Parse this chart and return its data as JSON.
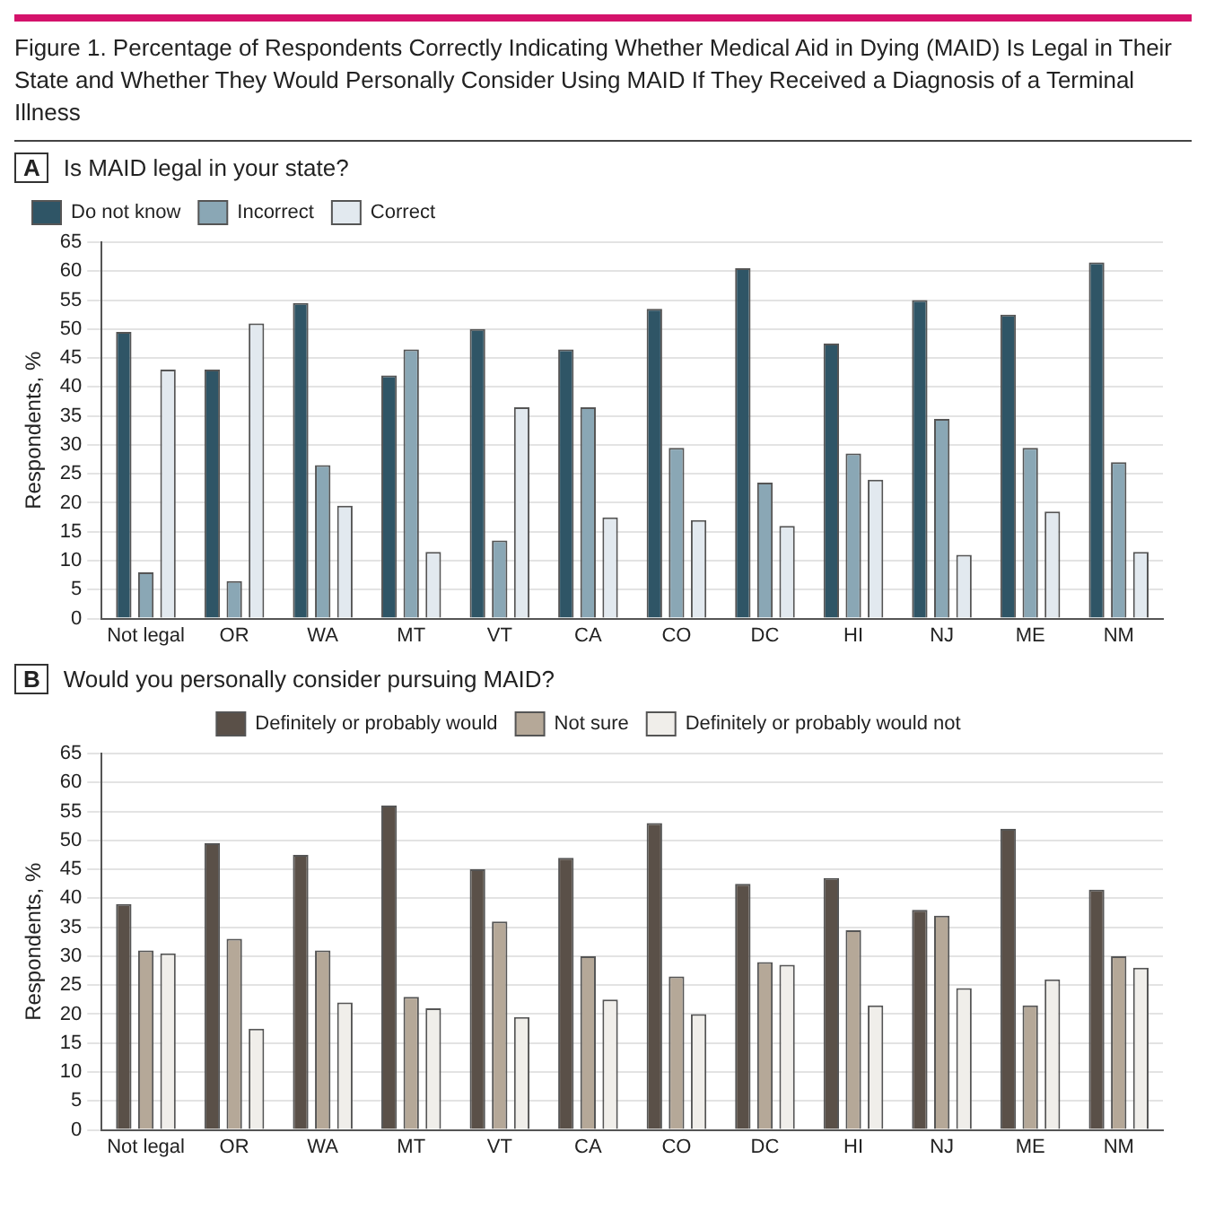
{
  "chart_data": [
    {
      "type": "bar",
      "title": "Figure 1. Percentage of Respondents Correctly Indicating Whether Medical Aid in Dying (MAID) Is Legal in Their State and Whether They Would Personally Consider Using MAID If They Received a Diagnosis of a Terminal Illness",
      "subtitle": "Is MAID legal in your state?",
      "annotations": [
        "A"
      ],
      "ylabel": "Respondents, %",
      "categories": [
        "Not legal",
        "OR",
        "WA",
        "MT",
        "VT",
        "CA",
        "CO",
        "DC",
        "HI",
        "NJ",
        "ME",
        "NM"
      ],
      "series": [
        {
          "name": "Do not know",
          "color": "#2f5566",
          "values": [
            49.5,
            43,
            54.5,
            42,
            50,
            46.5,
            53.5,
            60.5,
            47.5,
            55,
            52.5,
            61.5
          ]
        },
        {
          "name": "Incorrect",
          "color": "#8aa7b5",
          "values": [
            8,
            6.5,
            26.5,
            46.5,
            13.5,
            36.5,
            29.5,
            23.5,
            28.5,
            34.5,
            29.5,
            27
          ]
        },
        {
          "name": "Correct",
          "color": "#e2e9ef",
          "values": [
            43,
            51,
            19.5,
            11.5,
            36.5,
            17.5,
            17,
            16,
            24,
            11,
            18.5,
            11.5
          ]
        }
      ],
      "ylim": [
        0,
        65
      ],
      "yticks": [
        0,
        5,
        10,
        15,
        20,
        25,
        30,
        35,
        40,
        45,
        50,
        55,
        60,
        65
      ],
      "grid": "y",
      "legend": "top left"
    },
    {
      "type": "bar",
      "title": "Would you personally consider pursuing MAID?",
      "annotations": [
        "B"
      ],
      "ylabel": "Respondents, %",
      "categories": [
        "Not legal",
        "OR",
        "WA",
        "MT",
        "VT",
        "CA",
        "CO",
        "DC",
        "HI",
        "NJ",
        "ME",
        "NM"
      ],
      "series": [
        {
          "name": "Definitely or probably would",
          "color": "#5a5048",
          "values": [
            39,
            49.5,
            47.5,
            56,
            45,
            47,
            53,
            42.5,
            43.5,
            38,
            52,
            41.5
          ]
        },
        {
          "name": "Not sure",
          "color": "#b5a898",
          "values": [
            31,
            33,
            31,
            23,
            36,
            30,
            26.5,
            29,
            34.5,
            37,
            21.5,
            30
          ]
        },
        {
          "name": "Definitely or probably would not",
          "color": "#f0eeea",
          "values": [
            30.5,
            17.5,
            22,
            21,
            19.5,
            22.5,
            20,
            28.5,
            21.5,
            24.5,
            26,
            28
          ]
        }
      ],
      "ylim": [
        0,
        65
      ],
      "yticks": [
        0,
        5,
        10,
        15,
        20,
        25,
        30,
        35,
        40,
        45,
        50,
        55,
        60,
        65
      ],
      "grid": "y",
      "legend": "top"
    }
  ]
}
